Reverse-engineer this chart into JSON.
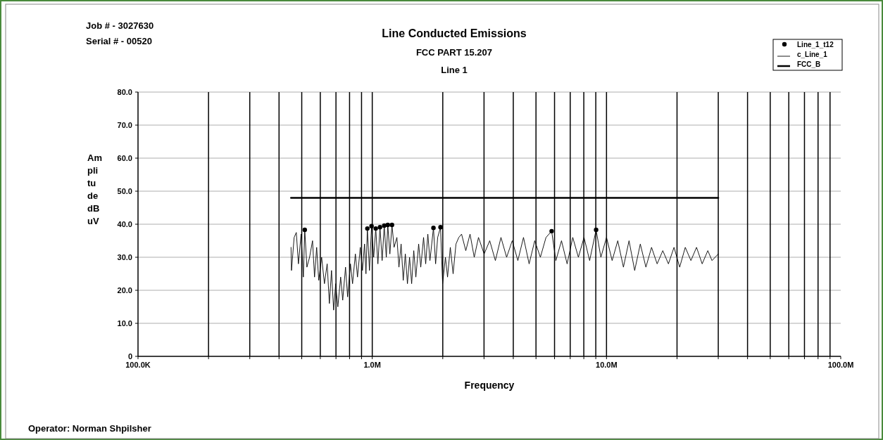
{
  "chart_data": {
    "type": "line",
    "title": "Line Conducted Emissions",
    "subtitle": "FCC PART 15.207",
    "xlabel": "Frequency",
    "ylabel": "Amplitude dB uV",
    "annotations": [
      "Line 1",
      "Job # - 3027630",
      "Serial # - 00520",
      "Operator: Norman Shpilsher"
    ],
    "log": "x",
    "grid": true,
    "legend": "top right",
    "xlim": [
      100000,
      100000000
    ],
    "xticks": [
      {
        "value": 100000,
        "label": "100.0K"
      },
      {
        "value": 200000,
        "label": null
      },
      {
        "value": 300000,
        "label": null
      },
      {
        "value": 400000,
        "label": null
      },
      {
        "value": 500000,
        "label": null
      },
      {
        "value": 600000,
        "label": null
      },
      {
        "value": 700000,
        "label": null
      },
      {
        "value": 800000,
        "label": null
      },
      {
        "value": 900000,
        "label": null
      },
      {
        "value": 1000000,
        "label": "1.0M"
      },
      {
        "value": 2000000,
        "label": null
      },
      {
        "value": 3000000,
        "label": null
      },
      {
        "value": 4000000,
        "label": null
      },
      {
        "value": 5000000,
        "label": null
      },
      {
        "value": 6000000,
        "label": null
      },
      {
        "value": 7000000,
        "label": null
      },
      {
        "value": 8000000,
        "label": null
      },
      {
        "value": 9000000,
        "label": null
      },
      {
        "value": 10000000,
        "label": "10.0M"
      },
      {
        "value": 20000000,
        "label": null
      },
      {
        "value": 30000000,
        "label": null
      },
      {
        "value": 40000000,
        "label": null
      },
      {
        "value": 50000000,
        "label": null
      },
      {
        "value": 60000000,
        "label": null
      },
      {
        "value": 70000000,
        "label": null
      },
      {
        "value": 80000000,
        "label": null
      },
      {
        "value": 90000000,
        "label": null
      },
      {
        "value": 100000000,
        "label": "100.0M"
      }
    ],
    "ylim": [
      0,
      80
    ],
    "yticks": [
      0,
      {
        "value": 10,
        "label": "10.0"
      },
      {
        "value": 20,
        "label": "20.0"
      },
      {
        "value": 30,
        "label": "30.0"
      },
      {
        "value": 40,
        "label": "40.0"
      },
      {
        "value": 50,
        "label": "50.0"
      },
      {
        "value": 60,
        "label": "60.0"
      },
      {
        "value": 70,
        "label": "70.0"
      },
      {
        "value": 80,
        "label": "80.0"
      }
    ],
    "series": [
      {
        "name": "Line_1_t12",
        "type": "scatter",
        "color": "#000000",
        "x": [
          515000,
          953000,
          993000,
          1035000,
          1079000,
          1125000,
          1165000,
          1214000,
          1825000,
          1956000,
          5832000,
          9028000
        ],
        "values": [
          38.3,
          38.7,
          39.4,
          38.7,
          39.1,
          39.6,
          39.8,
          39.8,
          38.9,
          39.1,
          37.9,
          38.3
        ]
      },
      {
        "name": "c_Line_1",
        "type": "line",
        "color": "#000000",
        "x": [
          450000,
          452000,
          464000,
          474000,
          484000,
          497000,
          508000,
          515000,
          526000,
          540000,
          556000,
          567000,
          579000,
          591000,
          608000,
          625000,
          642000,
          656000,
          670000,
          684000,
          698000,
          713000,
          733000,
          748000,
          769000,
          785000,
          807000,
          824000,
          847000,
          865000,
          889000,
          908000,
          927000,
          940000,
          953000,
          973000,
          993000,
          1014000,
          1035000,
          1057000,
          1079000,
          1102000,
          1125000,
          1148000,
          1165000,
          1189000,
          1214000,
          1239000,
          1274000,
          1300000,
          1328000,
          1356000,
          1384000,
          1413000,
          1443000,
          1473000,
          1504000,
          1535000,
          1578000,
          1611000,
          1656000,
          1691000,
          1727000,
          1763000,
          1825000,
          1864000,
          1902000,
          1956000,
          1997000,
          2053000,
          2096000,
          2154000,
          2214000,
          2277000,
          2341000,
          2406000,
          2508000,
          2615000,
          2725000,
          2841000,
          3003000,
          3173000,
          3354000,
          3544000,
          3746000,
          3959000,
          4184000,
          4422000,
          4674000,
          4939000,
          5220000,
          5517000,
          5832000,
          6079000,
          6425000,
          6790000,
          7177000,
          7585000,
          8016000,
          8472000,
          9028000,
          9463000,
          10000000,
          10570000,
          11170000,
          11810000,
          12480000,
          13190000,
          13940000,
          14730000,
          15570000,
          16450000,
          17390000,
          18380000,
          19420000,
          20530000,
          21690000,
          22930000,
          24230000,
          25610000,
          27070000,
          28210000,
          30000000
        ],
        "values": [
          33,
          26,
          36,
          37.5,
          28,
          37,
          24,
          38.3,
          27,
          30,
          35,
          24,
          33,
          23,
          30,
          22,
          28,
          16,
          26,
          14,
          22,
          15,
          24,
          17,
          27,
          18,
          28,
          22,
          31,
          24,
          33,
          26,
          34,
          25,
          38.7,
          26,
          39.4,
          30,
          38.7,
          28,
          39.1,
          29,
          39.6,
          30,
          39.8,
          31,
          39.8,
          33,
          36,
          27,
          34,
          23,
          31,
          22,
          30,
          22,
          32,
          24,
          34,
          27,
          36,
          28,
          37,
          29,
          38.9,
          28,
          36,
          39.1,
          22,
          30,
          24,
          33,
          25,
          34,
          36,
          37,
          32,
          37,
          30,
          36,
          31,
          35,
          29,
          36,
          30,
          35,
          29,
          36,
          28,
          35,
          30,
          36,
          37.9,
          29,
          35,
          28,
          36,
          30,
          36,
          29,
          38.3,
          30,
          36,
          29,
          35,
          27,
          35,
          26,
          34,
          27,
          33,
          28,
          32,
          28,
          33,
          27,
          33,
          29,
          33,
          28,
          32,
          29,
          31
        ]
      },
      {
        "name": "FCC_B",
        "type": "line",
        "color": "#000000",
        "x": [
          450000,
          30000000
        ],
        "values": [
          48,
          48
        ]
      }
    ]
  }
}
